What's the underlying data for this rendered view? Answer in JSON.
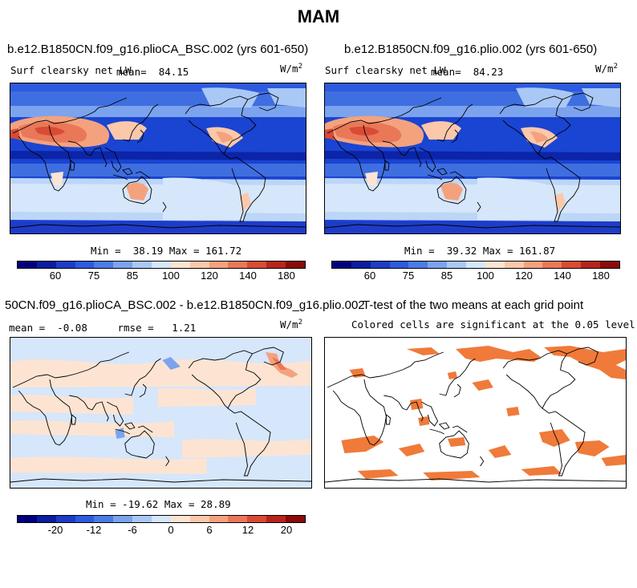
{
  "figure_title": "MAM",
  "chart_data": [
    {
      "type": "heatmap",
      "title": "b.e12.B1850CN.f09_g16.plioCA_BSC.002 (yrs 601-650)",
      "field": "Surf clearsky net LW",
      "mean_label": "mean=",
      "mean": "84.15",
      "units": "W/m",
      "units_exp": "2",
      "min_label": "Min =",
      "min": "38.19",
      "max_label": "Max =",
      "max": "161.72",
      "colorbar_ticks": [
        "60",
        "75",
        "85",
        "100",
        "120",
        "140",
        "180"
      ]
    },
    {
      "type": "heatmap",
      "title": "b.e12.B1850CN.f09_g16.plio.002 (yrs 601-650)",
      "field": "Surf clearsky net LW",
      "mean_label": "mean=",
      "mean": "84.23",
      "units": "W/m",
      "units_exp": "2",
      "min_label": "Min =",
      "min": "39.32",
      "max_label": "Max =",
      "max": "161.87",
      "colorbar_ticks": [
        "60",
        "75",
        "85",
        "100",
        "120",
        "140",
        "180"
      ]
    },
    {
      "type": "heatmap",
      "title": "50CN.f09_g16.plioCA_BSC.002 - b.e12.B1850CN.f09_g16.plio.002",
      "mean_label": "mean =",
      "mean": "-0.08",
      "rmse_label": "rmse =",
      "rmse": "1.21",
      "units": "W/m",
      "units_exp": "2",
      "min_label": "Min =",
      "min": "-19.62",
      "max_label": "Max =",
      "max": "28.89",
      "colorbar_ticks": [
        "-20",
        "-12",
        "-6",
        "0",
        "6",
        "12",
        "20"
      ]
    },
    {
      "type": "heatmap",
      "title": "T-test of the two means at each grid point",
      "subtitle": "Colored cells are significant at the 0.05 level"
    }
  ],
  "colors": {
    "colorbar": [
      "#00007f",
      "#0a1ea0",
      "#1e3cc8",
      "#2d5ade",
      "#4a7ce6",
      "#7ba3ee",
      "#a9c8f5",
      "#d6e6fb",
      "#fde4d2",
      "#fbc8aa",
      "#f4a27e",
      "#e97858",
      "#d94b34",
      "#b8241c",
      "#8b0a0a"
    ],
    "ttest_fill": "#f07a3a"
  }
}
